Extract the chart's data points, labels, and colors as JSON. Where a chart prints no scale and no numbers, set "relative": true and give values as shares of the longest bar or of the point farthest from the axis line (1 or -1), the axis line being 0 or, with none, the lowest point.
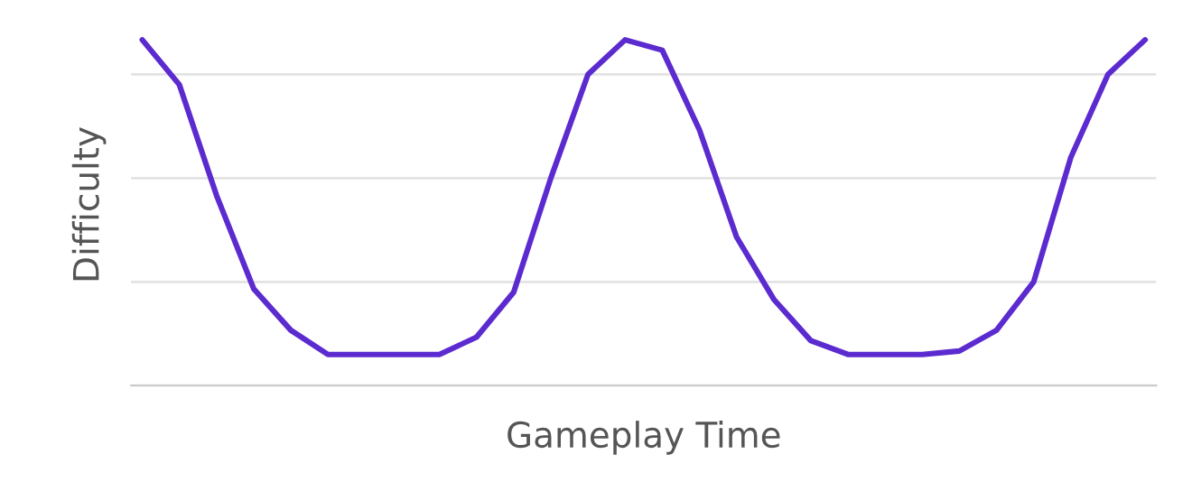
{
  "chart_data": {
    "type": "line",
    "relative": true,
    "xlabel": "Gameplay Time",
    "ylabel": "Difficulty",
    "grid": "y",
    "tick_labels": false,
    "categories": [
      null,
      null,
      null,
      null,
      null,
      null,
      null,
      null,
      null,
      null,
      null,
      null,
      null,
      null,
      null,
      null,
      null,
      null,
      null,
      null,
      null,
      null,
      null,
      null,
      null,
      null,
      null,
      null
    ],
    "series": [
      {
        "color": "#5b2bd0",
        "values": [
          1.0,
          0.87,
          0.55,
          0.28,
          0.16,
          0.09,
          0.09,
          0.09,
          0.09,
          0.14,
          0.27,
          0.6,
          0.9,
          1.0,
          0.97,
          0.74,
          0.43,
          0.25,
          0.13,
          0.09,
          0.09,
          0.09,
          0.1,
          0.16,
          0.3,
          0.66,
          0.9,
          1.0
        ]
      }
    ]
  }
}
